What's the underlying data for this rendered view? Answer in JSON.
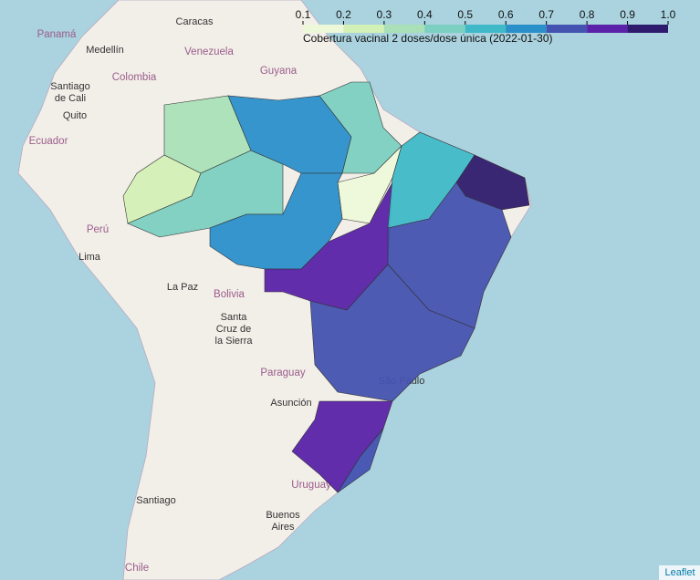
{
  "map": {
    "labels": [
      {
        "lines": [
          "Caracas"
        ],
        "kind": "city"
      },
      {
        "lines": [
          "Panamá"
        ],
        "kind": "country"
      },
      {
        "lines": [
          "Medellín"
        ],
        "kind": "city"
      },
      {
        "lines": [
          "Venezuela"
        ],
        "kind": "country"
      },
      {
        "lines": [
          "Colombia"
        ],
        "kind": "country"
      },
      {
        "lines": [
          "Guyana"
        ],
        "kind": "country"
      },
      {
        "lines": [
          "Santiago",
          "de Cali"
        ],
        "kind": "city"
      },
      {
        "lines": [
          "Quito"
        ],
        "kind": "city"
      },
      {
        "lines": [
          "Ecuador"
        ],
        "kind": "country"
      },
      {
        "lines": [
          "Perú"
        ],
        "kind": "country"
      },
      {
        "lines": [
          "Lima"
        ],
        "kind": "city"
      },
      {
        "lines": [
          "La Paz"
        ],
        "kind": "city"
      },
      {
        "lines": [
          "Bolivia"
        ],
        "kind": "country"
      },
      {
        "lines": [
          "Santa",
          "Cruz de",
          "la Sierra"
        ],
        "kind": "city"
      },
      {
        "lines": [
          "Paraguay"
        ],
        "kind": "country"
      },
      {
        "lines": [
          "Asunción"
        ],
        "kind": "city"
      },
      {
        "lines": [
          "São Paulo"
        ],
        "kind": "city"
      },
      {
        "lines": [
          "Uruguay"
        ],
        "kind": "country"
      },
      {
        "lines": [
          "Buenos",
          "Aires"
        ],
        "kind": "city"
      },
      {
        "lines": [
          "Santiago"
        ],
        "kind": "city"
      },
      {
        "lines": [
          "Chile"
        ],
        "kind": "country"
      }
    ],
    "regions": {
      "values": [
        0.35,
        0.25,
        0.45,
        0.65,
        0.42,
        0.15,
        0.6,
        0.88,
        0.55,
        0.95,
        0.75,
        0.78,
        0.85,
        0.72
      ]
    },
    "legend": {
      "caption": "Cobertura vacinal 2 doses/dose única (2022-01-30)",
      "ticks": [
        0.1,
        0.2,
        0.3,
        0.4,
        0.5,
        0.6,
        0.7,
        0.8,
        0.9,
        {
          "value": 1,
          "label": "1.0"
        }
      ],
      "colors": [
        "#edf8d9",
        "#d3f0b6",
        "#a9e0b8",
        "#7ccfc1",
        "#3fb8c8",
        "#2b8fca",
        "#4452b0",
        "#5a22a8",
        "#2f1b6e"
      ]
    },
    "attribution": "Leaflet"
  }
}
